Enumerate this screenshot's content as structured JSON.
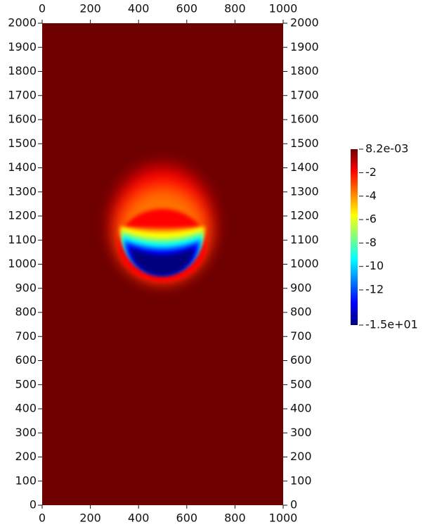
{
  "chart_data": {
    "type": "heatmap",
    "xlim": [
      0,
      1000
    ],
    "xticks": [
      0,
      200,
      400,
      600,
      800,
      1000
    ],
    "ylim": [
      0,
      2000
    ],
    "yticks": [
      0,
      100,
      200,
      300,
      400,
      500,
      600,
      700,
      800,
      900,
      1000,
      1100,
      1200,
      1300,
      1400,
      1500,
      1600,
      1700,
      1800,
      1900,
      2000
    ],
    "colorbar": {
      "lim": [
        -15,
        0.0082
      ],
      "ticks": [
        {
          "value": 0.0082,
          "label": "8.2e-03"
        },
        -2,
        -4,
        -6,
        -8,
        -10,
        -12,
        {
          "value": -15,
          "label": "-1.5e+01"
        }
      ],
      "colors": [
        "#00007f",
        "#0000ff",
        "#007fff",
        "#00ffff",
        "#7fff7f",
        "#ffff00",
        "#ff7f00",
        "#ff0000",
        "#6e0000"
      ]
    }
  }
}
